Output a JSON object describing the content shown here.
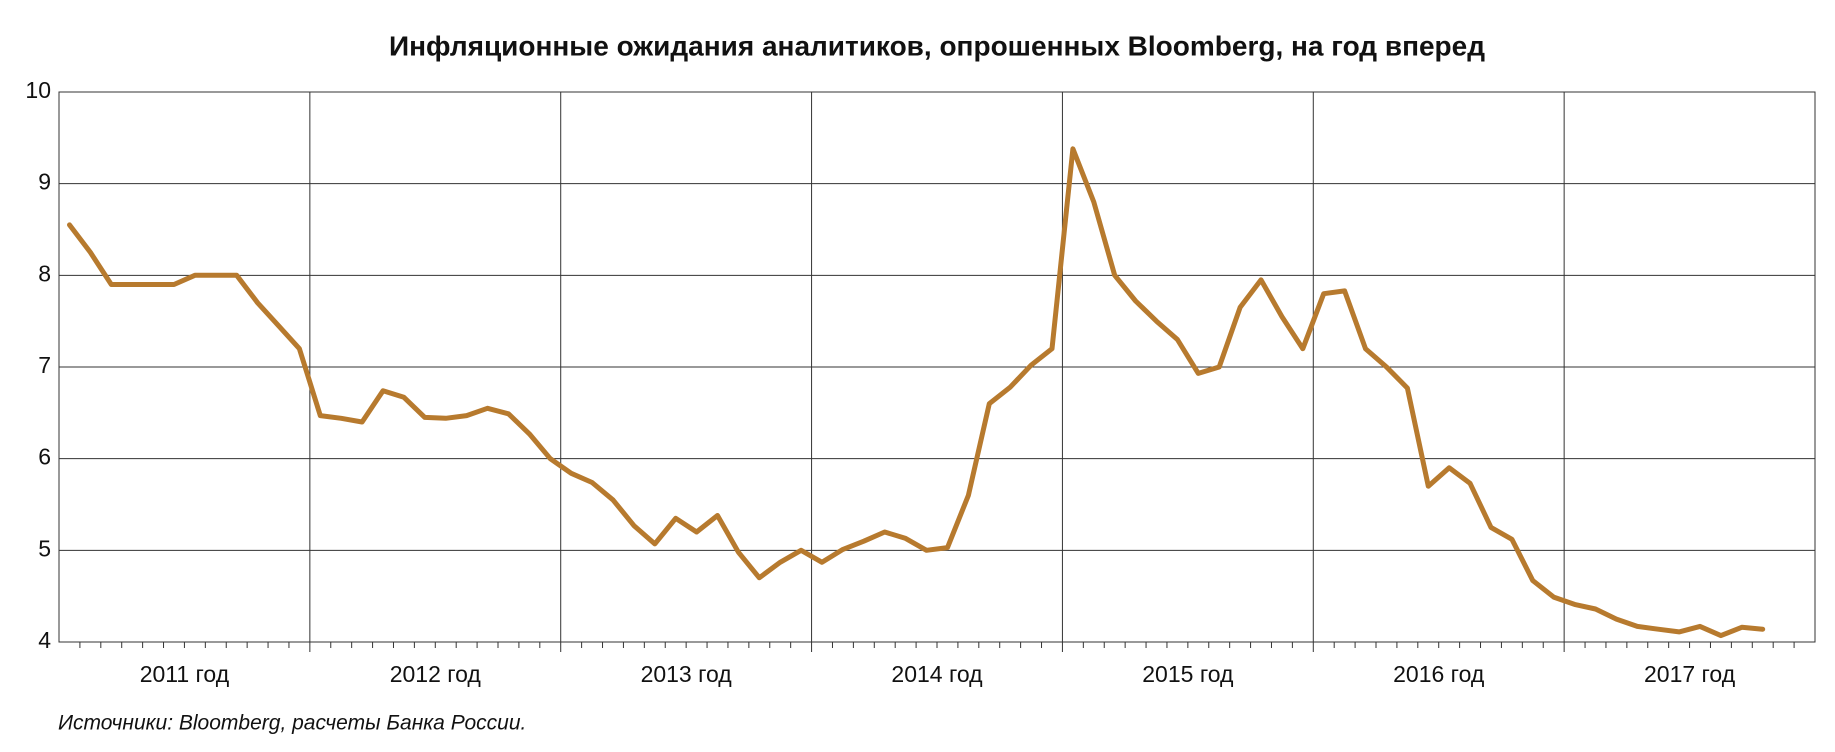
{
  "chart_data": {
    "type": "line",
    "title": "Инфляционные ожидания аналитиков, опрошенных Bloomberg, на год вперед",
    "source": "Источники: Bloomberg, расчеты Банка России.",
    "year_groups": [
      "2011 год",
      "2012 год",
      "2013 год",
      "2014 год",
      "2015 год",
      "2016 год",
      "2017 год"
    ],
    "values": [
      8.55,
      8.25,
      7.9,
      7.9,
      7.9,
      7.9,
      8.0,
      8.0,
      8.0,
      7.7,
      7.45,
      7.2,
      6.47,
      6.44,
      6.4,
      6.74,
      6.67,
      6.45,
      6.44,
      6.47,
      6.55,
      6.49,
      6.27,
      6.0,
      5.84,
      5.74,
      5.55,
      5.27,
      5.07,
      5.35,
      5.2,
      5.38,
      4.98,
      4.7,
      4.87,
      5.0,
      4.87,
      5.01,
      5.1,
      5.2,
      5.13,
      5.0,
      5.03,
      5.6,
      6.6,
      6.78,
      7.02,
      7.2,
      9.38,
      8.8,
      8.0,
      7.72,
      7.5,
      7.3,
      6.93,
      7.0,
      7.65,
      7.95,
      7.55,
      7.2,
      7.8,
      7.83,
      7.2,
      7.0,
      6.77,
      5.7,
      5.9,
      5.73,
      5.25,
      5.12,
      4.67,
      4.49,
      4.41,
      4.36,
      4.25,
      4.17,
      4.14,
      4.11,
      4.17,
      4.07,
      4.16,
      4.14
    ],
    "color": "#b77a2e",
    "ylim": [
      4,
      10
    ],
    "yticks": [
      4,
      5,
      6,
      7,
      8,
      9,
      10
    ],
    "grid": true
  }
}
